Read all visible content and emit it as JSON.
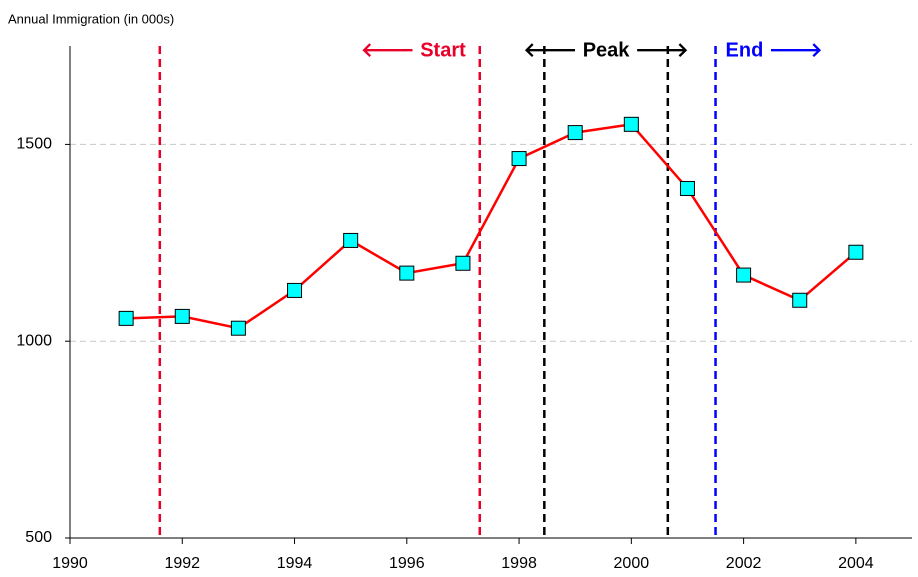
{
  "chart_data": {
    "type": "line",
    "y_label": "Annual Immigration (in 000s)",
    "x": [
      1991,
      1992,
      1993,
      1994,
      1995,
      1996,
      1997,
      1998,
      1999,
      2000,
      2001,
      2002,
      2003,
      2004
    ],
    "series": [
      {
        "color": "#ff0000",
        "marker_color": "#00ffff",
        "values": [
          1058,
          1063,
          1033,
          1129,
          1256,
          1173,
          1198,
          1464,
          1530,
          1551,
          1388,
          1168,
          1104,
          1226
        ]
      }
    ],
    "xlim": [
      1990,
      2005
    ],
    "xticks": [
      1990,
      1992,
      1994,
      1996,
      1998,
      2000,
      2002,
      2004
    ],
    "ylim": [
      500,
      1750
    ],
    "yticks": [
      500,
      1000,
      1500
    ],
    "grid": true,
    "vlines": [
      {
        "x": 1991.6,
        "color": "#e8002a"
      },
      {
        "x": 1997.3,
        "color": "#e8002a"
      },
      {
        "x": 1998.45,
        "color": "#000000"
      },
      {
        "x": 2000.65,
        "color": "#000000"
      },
      {
        "x": 2001.5,
        "color": "#0000ff"
      }
    ],
    "annotations": [
      {
        "text": "🡐 Start",
        "color": "#e8002a",
        "x": 1997.3,
        "align": "right"
      },
      {
        "text": "🡐 Peak 🡒",
        "color": "#000000",
        "x": 1999.55,
        "align": "center"
      },
      {
        "text": "End 🡒",
        "color": "#0000ff",
        "x": 2001.5,
        "align": "left"
      }
    ]
  }
}
